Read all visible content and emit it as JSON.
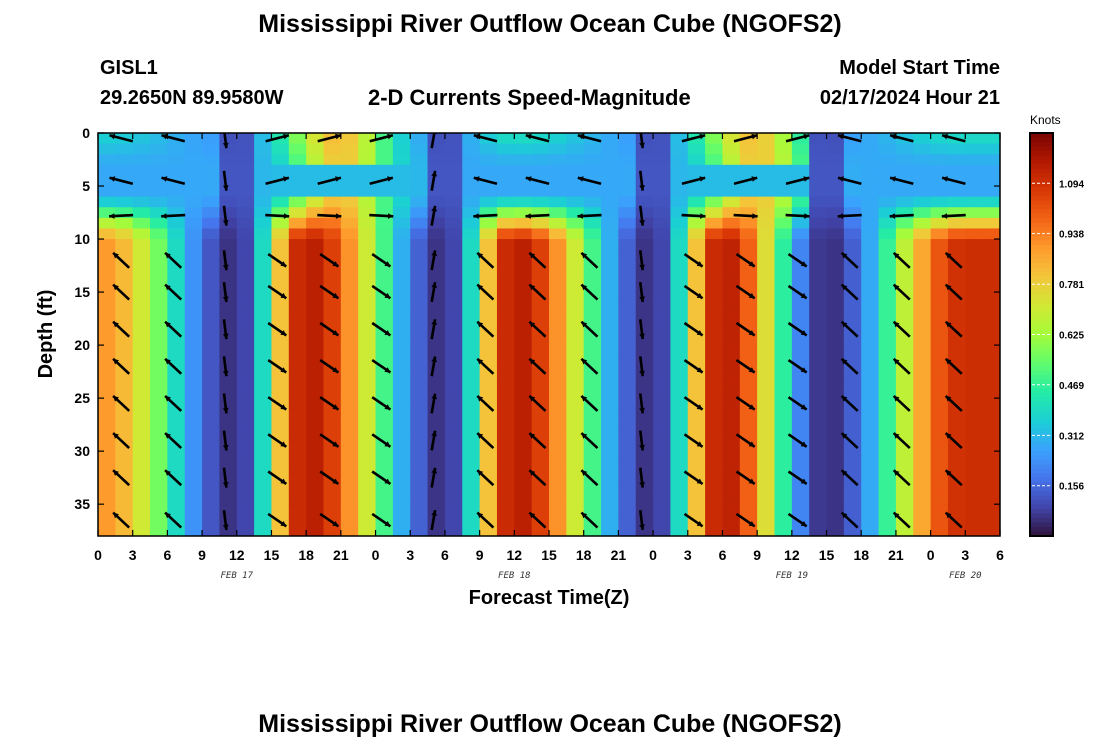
{
  "titles": {
    "main": "Mississippi River Outflow Ocean Cube (NGOFS2)",
    "bottom": "Mississippi River Outflow Ocean Cube (NGOFS2)"
  },
  "station": {
    "id": "GISL1",
    "coords": "29.2650N  89.9580W"
  },
  "subtitle": "2-D Currents Speed-Magnitude",
  "model_start": {
    "label": "Model Start Time",
    "value": "02/17/2024 Hour 21"
  },
  "colors": {
    "colormap": [
      "#30123b",
      "#4145ab",
      "#4675ed",
      "#39a2fc",
      "#1bcfd4",
      "#24eca6",
      "#61fc6c",
      "#a4fc3b",
      "#d1e834",
      "#f3c63a",
      "#fe9b2d",
      "#f36315",
      "#d93806",
      "#b11901",
      "#7a0402"
    ],
    "arrow": "#000000"
  },
  "chart_data": {
    "type": "heatmap",
    "title": "2-D Currents Speed-Magnitude",
    "xlabel": "Forecast Time(Z)",
    "ylabel": "Depth (ft)",
    "x_ticks": [
      "0",
      "3",
      "6",
      "9",
      "12",
      "15",
      "18",
      "21",
      "0",
      "3",
      "6",
      "9",
      "12",
      "15",
      "18",
      "21",
      "0",
      "3",
      "6",
      "9",
      "12",
      "15",
      "18",
      "21",
      "0",
      "3",
      "6"
    ],
    "x_range_hours": [
      0,
      78
    ],
    "date_labels": [
      {
        "label": "FEB 17",
        "hour": 12
      },
      {
        "label": "FEB 18",
        "hour": 36
      },
      {
        "label": "FEB 19",
        "hour": 60
      },
      {
        "label": "FEB 20",
        "hour": 75
      }
    ],
    "y_ticks": [
      "0",
      "5",
      "10",
      "15",
      "20",
      "25",
      "30",
      "35"
    ],
    "y_range_ft": [
      0,
      38
    ],
    "y_reversed": true,
    "colorbar": {
      "label": "Knots",
      "ticks": [
        "1.094",
        "0.938",
        "0.781",
        "0.625",
        "0.469",
        "0.312",
        "0.156"
      ],
      "range": [
        0.0,
        1.25
      ]
    },
    "bottom_speed_peaks": [
      {
        "hour": 0,
        "speed": 0.9
      },
      {
        "hour": 18,
        "speed": 1.15
      },
      {
        "hour": 36,
        "speed": 1.15
      },
      {
        "hour": 54,
        "speed": 1.15
      },
      {
        "hour": 75,
        "speed": 1.1
      }
    ],
    "surface_speed_peaks": [
      {
        "hour": 21,
        "speed": 0.8
      },
      {
        "hour": 57,
        "speed": 0.8
      }
    ],
    "slack_hours": [
      12,
      30,
      48,
      63
    ]
  }
}
